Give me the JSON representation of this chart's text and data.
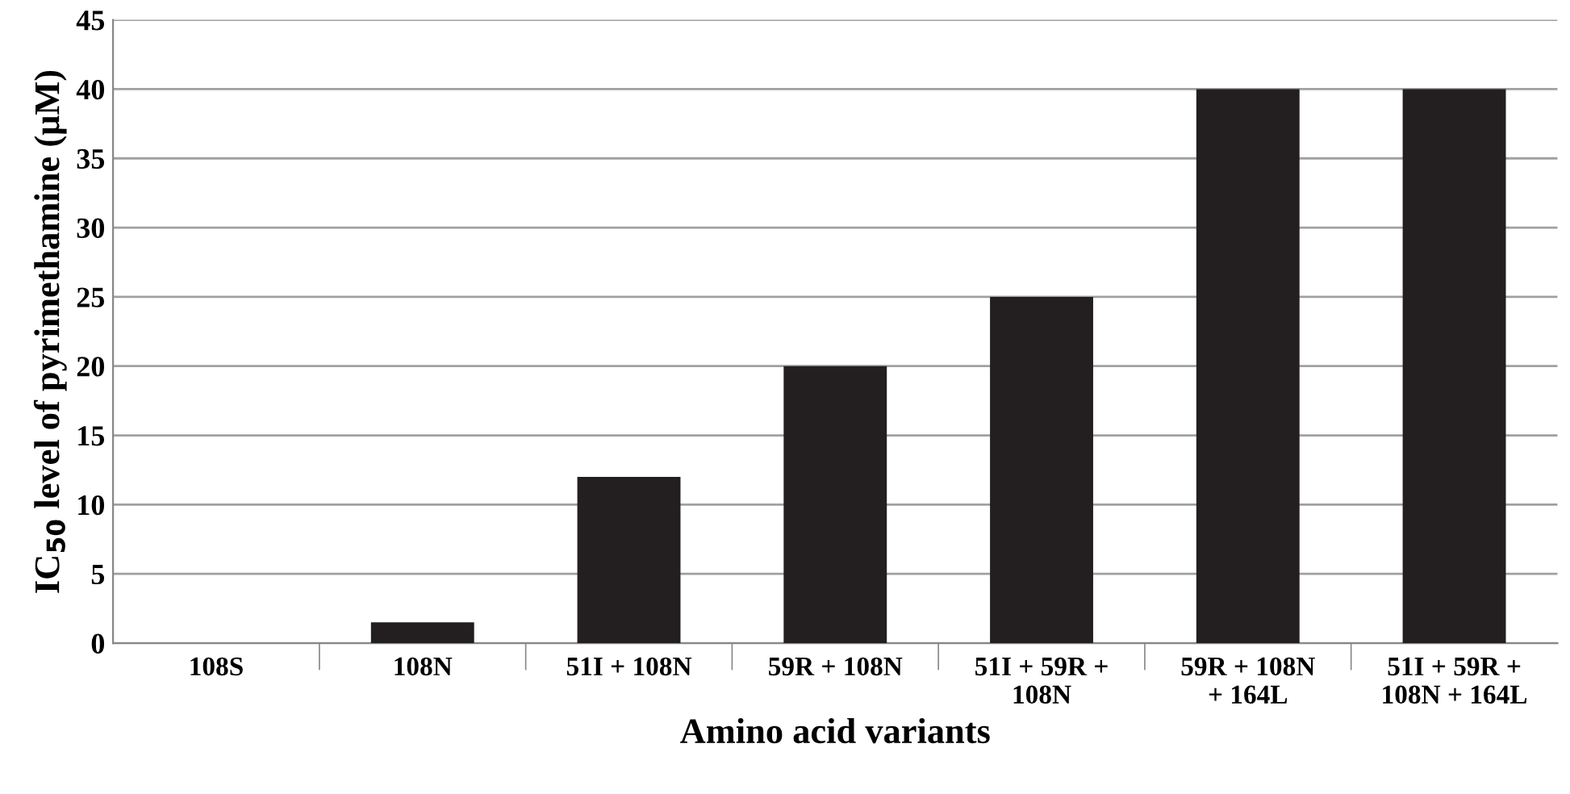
{
  "chart_data": {
    "type": "bar",
    "xlabel": "Amino acid variants",
    "ylabel": "IC$_{50}$ level of pyrimethamine (μM)",
    "categories": [
      "108S",
      "108N",
      "51I + 108N",
      "59R + 108N",
      "51I + 59R +\n108N",
      "59R + 108N\n+ 164L",
      "51I + 59R +\n108N + 164L"
    ],
    "values": [
      0,
      1.5,
      12,
      20,
      25,
      40,
      40
    ],
    "color": "#231f20",
    "ylim": [
      0,
      45
    ],
    "yticks": [
      0,
      5,
      10,
      15,
      20,
      25,
      30,
      35,
      40,
      45
    ],
    "grid": "y"
  }
}
